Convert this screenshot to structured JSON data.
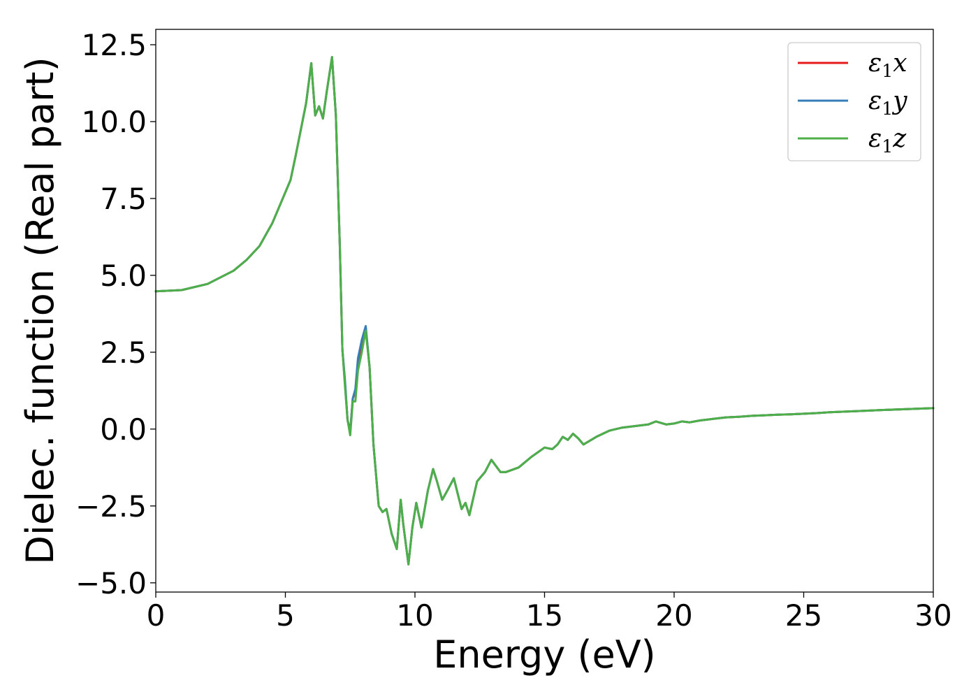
{
  "chart_data": {
    "type": "line",
    "title": "",
    "xlabel": "Energy (eV)",
    "ylabel": "Dielec. function (Real part)",
    "xlim": [
      0,
      30
    ],
    "ylim": [
      -5.3,
      13.0
    ],
    "xticks": [
      0,
      5,
      10,
      15,
      20,
      25,
      30
    ],
    "xtick_labels": [
      "0",
      "5",
      "10",
      "15",
      "20",
      "25",
      "30"
    ],
    "yticks": [
      -5.0,
      -2.5,
      0.0,
      2.5,
      5.0,
      7.5,
      10.0,
      12.5
    ],
    "ytick_labels": [
      "−5.0",
      "−2.5",
      "0.0",
      "2.5",
      "5.0",
      "7.5",
      "10.0",
      "12.5"
    ],
    "grid": false,
    "legend_position": "top-right",
    "series": [
      {
        "name": "ε₁x",
        "legend_base": "ε",
        "legend_sub": "1",
        "legend_suffix": "x",
        "color": "#e41a1c",
        "x": [
          0,
          1,
          2,
          3,
          3.5,
          4,
          4.5,
          5,
          5.2,
          5.4,
          5.8,
          6.0,
          6.15,
          6.3,
          6.45,
          6.6,
          6.8,
          6.95,
          7.1,
          7.2,
          7.3,
          7.4,
          7.5,
          7.6,
          7.7,
          7.8,
          7.95,
          8.1,
          8.25,
          8.4,
          8.6,
          8.75,
          8.9,
          9.1,
          9.3,
          9.45,
          9.55,
          9.75,
          9.9,
          10.05,
          10.25,
          10.5,
          10.7,
          10.85,
          11.05,
          11.25,
          11.5,
          11.65,
          11.8,
          11.95,
          12.1,
          12.4,
          12.7,
          12.95,
          13.3,
          13.5,
          14,
          14.5,
          15,
          15.3,
          15.5,
          15.7,
          15.9,
          16.1,
          16.3,
          16.5,
          17,
          17.5,
          18,
          18.5,
          19,
          19.3,
          19.7,
          20,
          20.3,
          20.6,
          21,
          21.5,
          22,
          22.5,
          23,
          23.5,
          24,
          24.5,
          25,
          25.5,
          26,
          27,
          28,
          29,
          30
        ],
        "y": [
          4.48,
          4.52,
          4.72,
          5.15,
          5.5,
          5.95,
          6.7,
          7.7,
          8.1,
          8.9,
          10.6,
          11.9,
          10.2,
          10.5,
          10.1,
          11.0,
          12.1,
          10.2,
          6.0,
          2.6,
          1.5,
          0.3,
          -0.1,
          1.0,
          1.2,
          2.2,
          2.8,
          3.3,
          2.0,
          -0.5,
          -2.5,
          -2.7,
          -2.6,
          -3.4,
          -3.9,
          -2.3,
          -3.1,
          -4.4,
          -3.2,
          -2.4,
          -3.2,
          -2.0,
          -1.3,
          -1.7,
          -2.3,
          -2.0,
          -1.6,
          -2.1,
          -2.6,
          -2.4,
          -2.8,
          -1.7,
          -1.4,
          -1.0,
          -1.4,
          -1.4,
          -1.25,
          -0.9,
          -0.6,
          -0.65,
          -0.5,
          -0.25,
          -0.35,
          -0.15,
          -0.3,
          -0.5,
          -0.25,
          -0.05,
          0.05,
          0.1,
          0.15,
          0.25,
          0.15,
          0.18,
          0.25,
          0.22,
          0.28,
          0.33,
          0.38,
          0.4,
          0.43,
          0.45,
          0.47,
          0.48,
          0.5,
          0.52,
          0.55,
          0.58,
          0.62,
          0.65,
          0.68
        ]
      },
      {
        "name": "ε₁y",
        "legend_base": "ε",
        "legend_sub": "1",
        "legend_suffix": "y",
        "color": "#377eb8",
        "x": [
          0,
          1,
          2,
          3,
          3.5,
          4,
          4.5,
          5,
          5.2,
          5.4,
          5.8,
          6.0,
          6.15,
          6.3,
          6.45,
          6.6,
          6.8,
          6.95,
          7.1,
          7.2,
          7.3,
          7.4,
          7.5,
          7.6,
          7.7,
          7.8,
          7.95,
          8.1,
          8.25,
          8.4,
          8.6,
          8.75,
          8.9,
          9.1,
          9.3,
          9.45,
          9.55,
          9.75,
          9.9,
          10.05,
          10.25,
          10.5,
          10.7,
          10.85,
          11.05,
          11.25,
          11.5,
          11.65,
          11.8,
          11.95,
          12.1,
          12.4,
          12.7,
          12.95,
          13.3,
          13.5,
          14,
          14.5,
          15,
          15.3,
          15.5,
          15.7,
          15.9,
          16.1,
          16.3,
          16.5,
          17,
          17.5,
          18,
          18.5,
          19,
          19.3,
          19.7,
          20,
          20.3,
          20.6,
          21,
          21.5,
          22,
          22.5,
          23,
          23.5,
          24,
          24.5,
          25,
          25.5,
          26,
          27,
          28,
          29,
          30
        ],
        "y": [
          4.48,
          4.52,
          4.72,
          5.15,
          5.5,
          5.95,
          6.7,
          7.7,
          8.1,
          8.9,
          10.6,
          11.9,
          10.2,
          10.5,
          10.1,
          11.0,
          12.1,
          10.2,
          6.0,
          2.6,
          1.6,
          0.3,
          -0.1,
          1.0,
          1.3,
          2.3,
          2.9,
          3.35,
          2.0,
          -0.5,
          -2.5,
          -2.7,
          -2.6,
          -3.4,
          -3.9,
          -2.3,
          -3.1,
          -4.4,
          -3.2,
          -2.4,
          -3.2,
          -2.0,
          -1.3,
          -1.7,
          -2.3,
          -2.0,
          -1.6,
          -2.1,
          -2.6,
          -2.4,
          -2.8,
          -1.7,
          -1.4,
          -1.0,
          -1.4,
          -1.4,
          -1.25,
          -0.9,
          -0.6,
          -0.65,
          -0.5,
          -0.25,
          -0.35,
          -0.15,
          -0.3,
          -0.5,
          -0.25,
          -0.05,
          0.05,
          0.1,
          0.15,
          0.25,
          0.15,
          0.18,
          0.25,
          0.22,
          0.28,
          0.33,
          0.38,
          0.4,
          0.43,
          0.45,
          0.47,
          0.48,
          0.5,
          0.52,
          0.55,
          0.58,
          0.62,
          0.65,
          0.68
        ]
      },
      {
        "name": "ε₁z",
        "legend_base": "ε",
        "legend_sub": "1",
        "legend_suffix": "z",
        "color": "#4daf4a",
        "x": [
          0,
          1,
          2,
          3,
          3.5,
          4,
          4.5,
          5,
          5.2,
          5.4,
          5.8,
          6.0,
          6.15,
          6.3,
          6.45,
          6.6,
          6.8,
          6.95,
          7.1,
          7.2,
          7.3,
          7.4,
          7.5,
          7.6,
          7.7,
          7.8,
          7.95,
          8.1,
          8.25,
          8.4,
          8.6,
          8.75,
          8.9,
          9.1,
          9.3,
          9.45,
          9.55,
          9.75,
          9.9,
          10.05,
          10.25,
          10.5,
          10.7,
          10.85,
          11.05,
          11.25,
          11.5,
          11.65,
          11.8,
          11.95,
          12.1,
          12.4,
          12.7,
          12.95,
          13.3,
          13.5,
          14,
          14.5,
          15,
          15.3,
          15.5,
          15.7,
          15.9,
          16.1,
          16.3,
          16.5,
          17,
          17.5,
          18,
          18.5,
          19,
          19.3,
          19.7,
          20,
          20.3,
          20.6,
          21,
          21.5,
          22,
          22.5,
          23,
          23.5,
          24,
          24.5,
          25,
          25.5,
          26,
          27,
          28,
          29,
          30
        ],
        "y": [
          4.48,
          4.52,
          4.72,
          5.15,
          5.5,
          5.95,
          6.7,
          7.7,
          8.1,
          8.9,
          10.6,
          11.9,
          10.2,
          10.5,
          10.1,
          11.0,
          12.1,
          10.2,
          6.0,
          2.6,
          1.4,
          0.3,
          -0.2,
          0.9,
          0.9,
          1.9,
          2.5,
          3.2,
          2.0,
          -0.5,
          -2.5,
          -2.7,
          -2.6,
          -3.4,
          -3.9,
          -2.3,
          -3.1,
          -4.4,
          -3.2,
          -2.4,
          -3.2,
          -2.0,
          -1.3,
          -1.7,
          -2.3,
          -2.0,
          -1.6,
          -2.1,
          -2.6,
          -2.4,
          -2.8,
          -1.7,
          -1.4,
          -1.0,
          -1.4,
          -1.4,
          -1.25,
          -0.9,
          -0.6,
          -0.65,
          -0.5,
          -0.25,
          -0.35,
          -0.15,
          -0.3,
          -0.5,
          -0.25,
          -0.05,
          0.05,
          0.1,
          0.15,
          0.25,
          0.15,
          0.18,
          0.25,
          0.22,
          0.28,
          0.33,
          0.38,
          0.4,
          0.43,
          0.45,
          0.47,
          0.48,
          0.5,
          0.52,
          0.55,
          0.58,
          0.62,
          0.65,
          0.68
        ]
      }
    ]
  }
}
